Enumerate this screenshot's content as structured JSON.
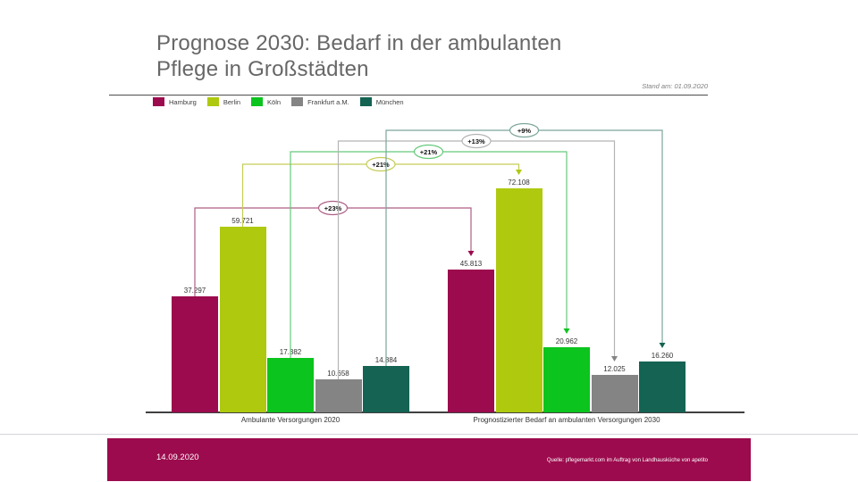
{
  "slide": {
    "title_line1": "Prognose 2030: Bedarf in der ambulanten",
    "title_line2": "Pflege in Großstädten",
    "stand_am": "Stand am: 01.09.2020",
    "footer": {
      "date": "14.09.2020",
      "source": "Quelle: pflegemarkt.com im Auftrag von Landhausküche von apetito",
      "bar_color": "#9C0B4E"
    }
  },
  "chart_data": {
    "type": "bar",
    "title": "Prognose 2030: Bedarf in der ambulanten Pflege in Großstädten",
    "categories": [
      "Ambulante Versorgungen 2020",
      "Prognostizierter Bedarf an ambulanten Versorgungen 2030"
    ],
    "series": [
      {
        "name": "Hamburg",
        "values": [
          37297,
          45813
        ],
        "value_labels": [
          "37.297",
          "45.813"
        ],
        "growth_label": "+23%",
        "bar_color": "#9C0B4E",
        "connector_color": "#AE5E85"
      },
      {
        "name": "Berlin",
        "values": [
          59721,
          72108
        ],
        "value_labels": [
          "59.721",
          "72.108"
        ],
        "growth_label": "+21%",
        "bar_color": "#AFC90F",
        "connector_color": "#C6CC58"
      },
      {
        "name": "Köln",
        "values": [
          17382,
          20962
        ],
        "value_labels": [
          "17.382",
          "20.962"
        ],
        "growth_label": "+21%",
        "bar_color": "#0BC41E",
        "connector_color": "#64C97A"
      },
      {
        "name": "Frankfurt a.M.",
        "values": [
          10658,
          12025
        ],
        "value_labels": [
          "10.658",
          "12.025"
        ],
        "growth_label": "+13%",
        "bar_color": "#848484",
        "connector_color": "#B4B4B4"
      },
      {
        "name": "München",
        "values": [
          14884,
          16260
        ],
        "value_labels": [
          "14.884",
          "16.260"
        ],
        "growth_label": "+9%",
        "bar_color": "#146353",
        "connector_color": "#7BA59B"
      }
    ],
    "legend_position": "top-left",
    "ylim": [
      0,
      75000
    ],
    "grid": false,
    "xlabel": "",
    "ylabel": ""
  }
}
